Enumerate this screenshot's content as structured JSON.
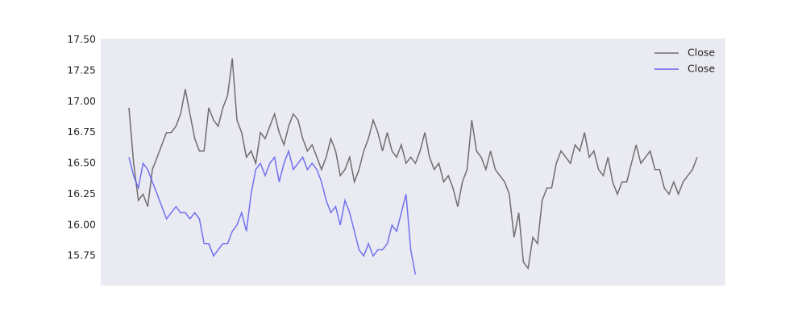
{
  "chart_data": {
    "type": "line",
    "series": [
      {
        "name": "Close",
        "color": "#6e6e6e",
        "values": [
          16.95,
          16.5,
          16.2,
          16.25,
          16.15,
          16.45,
          16.55,
          16.65,
          16.75,
          16.75,
          16.8,
          16.9,
          17.1,
          16.9,
          16.7,
          16.6,
          16.6,
          16.95,
          16.85,
          16.8,
          16.95,
          17.05,
          17.35,
          16.85,
          16.75,
          16.55,
          16.6,
          16.5,
          16.75,
          16.7,
          16.8,
          16.9,
          16.75,
          16.65,
          16.8,
          16.9,
          16.85,
          16.7,
          16.6,
          16.65,
          16.55,
          16.45,
          16.55,
          16.7,
          16.6,
          16.4,
          16.45,
          16.55,
          16.35,
          16.45,
          16.6,
          16.7,
          16.85,
          16.75,
          16.6,
          16.75,
          16.6,
          16.55,
          16.65,
          16.5,
          16.55,
          16.5,
          16.6,
          16.75,
          16.55,
          16.45,
          16.5,
          16.35,
          16.4,
          16.3,
          16.15,
          16.35,
          16.45,
          16.85,
          16.6,
          16.55,
          16.45,
          16.6,
          16.45,
          16.4,
          16.35,
          16.25,
          15.9,
          16.1,
          15.7,
          15.65,
          15.9,
          15.85,
          16.2,
          16.3,
          16.3,
          16.5,
          16.6,
          16.55,
          16.5,
          16.65,
          16.6,
          16.75,
          16.55,
          16.6,
          16.45,
          16.4,
          16.55,
          16.35,
          16.25,
          16.35,
          16.35,
          16.5,
          16.65,
          16.5,
          16.55,
          16.6,
          16.45,
          16.45,
          16.3,
          16.25,
          16.35,
          16.25,
          16.35,
          16.4,
          16.45,
          16.55
        ]
      },
      {
        "name": "Close",
        "color": "#5c5cf0",
        "values": [
          16.55,
          16.4,
          16.3,
          16.5,
          16.45,
          16.35,
          16.25,
          16.15,
          16.05,
          16.1,
          16.15,
          16.1,
          16.1,
          16.05,
          16.1,
          16.05,
          15.85,
          15.85,
          15.75,
          15.8,
          15.85,
          15.85,
          15.95,
          16.0,
          16.1,
          15.95,
          16.25,
          16.45,
          16.5,
          16.4,
          16.5,
          16.55,
          16.35,
          16.5,
          16.6,
          16.45,
          16.5,
          16.55,
          16.45,
          16.5,
          16.45,
          16.35,
          16.2,
          16.1,
          16.15,
          16.0,
          16.2,
          16.1,
          15.95,
          15.8,
          15.75,
          15.85,
          15.75,
          15.8,
          15.8,
          15.85,
          16.0,
          15.95,
          16.1,
          16.25,
          15.8,
          15.6
        ]
      }
    ],
    "ylim": [
      15.51,
      17.51
    ],
    "yticks": [
      {
        "value": 15.75,
        "label": "15.75"
      },
      {
        "value": 16.0,
        "label": "16.00"
      },
      {
        "value": 16.25,
        "label": "16.25"
      },
      {
        "value": 16.5,
        "label": "16.50"
      },
      {
        "value": 16.75,
        "label": "16.75"
      },
      {
        "value": 17.0,
        "label": "17.00"
      },
      {
        "value": 17.25,
        "label": "17.25"
      },
      {
        "value": 17.5,
        "label": "17.50"
      }
    ],
    "grid": false,
    "legend": "upper right"
  }
}
